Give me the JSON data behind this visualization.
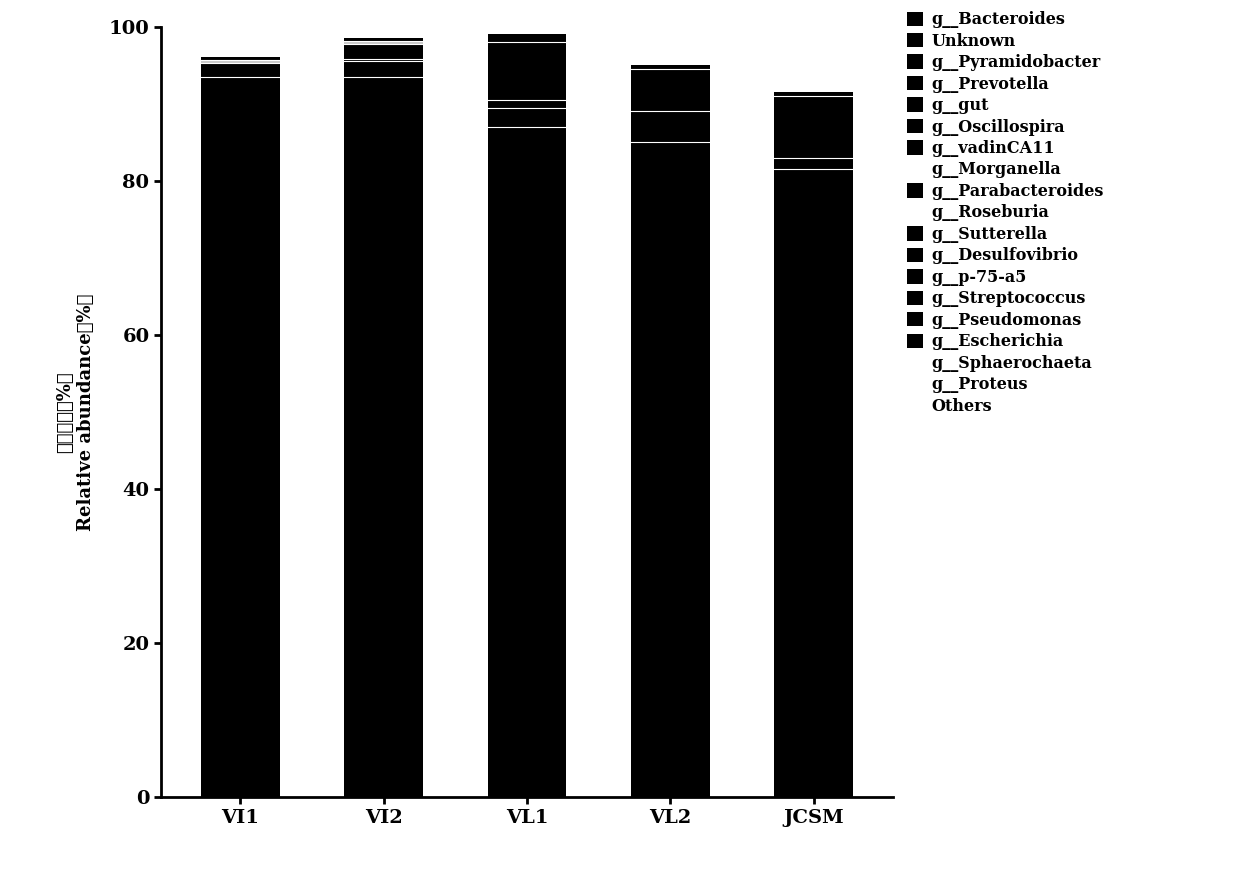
{
  "categories": [
    "VI1",
    "VI2",
    "VL1",
    "VL2",
    "JCSM"
  ],
  "species": [
    "g__Bacteroides",
    "Unknown",
    "g__Pyramidobacter",
    "g__Prevotella",
    "g__gut",
    "g__Oscillospira",
    "g__vadinCA11",
    "g__Morganella",
    "g__Parabacteroides",
    "g__Roseburia",
    "g__Sutterella",
    "g__Desulfovibrio",
    "g__p-75-a5",
    "g__Streptococcus",
    "g__Pseudomonas",
    "g__Escherichia",
    "g__Sphaerochaeta",
    "g__Proteus",
    "Others"
  ],
  "has_marker": [
    true,
    true,
    true,
    true,
    true,
    true,
    true,
    false,
    true,
    false,
    true,
    true,
    true,
    true,
    true,
    true,
    false,
    false,
    false
  ],
  "colors": [
    "#000000",
    "#000000",
    "#000000",
    "#000000",
    "#000000",
    "#000000",
    "#000000",
    "#000000",
    "#000000",
    "#000000",
    "#000000",
    "#000000",
    "#000000",
    "#000000",
    "#000000",
    "#000000",
    "#c8c8c8",
    "#000000",
    "#000000"
  ],
  "data": {
    "VI1": [
      93.5,
      1.8,
      0.0,
      0.0,
      0.0,
      0.0,
      0.0,
      0.0,
      0.0,
      0.0,
      0.0,
      0.0,
      0.0,
      0.0,
      0.0,
      0.0,
      0.3,
      0.0,
      0.4
    ],
    "VI2": [
      93.5,
      2.0,
      0.0,
      0.0,
      0.0,
      0.0,
      0.0,
      0.0,
      0.0,
      0.0,
      0.0,
      0.0,
      0.0,
      0.0,
      0.3,
      2.0,
      0.3,
      0.0,
      0.4
    ],
    "VL1": [
      87.0,
      2.5,
      0.0,
      0.0,
      0.0,
      0.0,
      0.0,
      0.0,
      0.0,
      0.0,
      0.0,
      0.0,
      0.0,
      1.0,
      0.0,
      7.5,
      0.0,
      0.0,
      1.0
    ],
    "VL2": [
      85.0,
      4.0,
      0.0,
      0.0,
      0.0,
      0.0,
      0.0,
      0.0,
      0.0,
      0.0,
      0.0,
      0.0,
      0.0,
      0.0,
      0.0,
      5.5,
      0.0,
      0.0,
      0.5
    ],
    "JCSM": [
      81.5,
      1.5,
      0.0,
      0.0,
      0.0,
      0.0,
      0.0,
      0.0,
      0.0,
      0.0,
      0.0,
      0.0,
      0.0,
      0.0,
      0.0,
      8.0,
      0.0,
      0.0,
      0.5
    ]
  },
  "ylim": [
    0,
    100
  ],
  "yticks": [
    0,
    20,
    40,
    60,
    80,
    100
  ],
  "ylabel_chinese": "相对含量（%）",
  "ylabel_english": "Relative abundance（%）",
  "background_color": "#ffffff",
  "bar_width": 0.55,
  "legend_fontsize": 11.5,
  "axis_fontsize": 13,
  "tick_fontsize": 14
}
